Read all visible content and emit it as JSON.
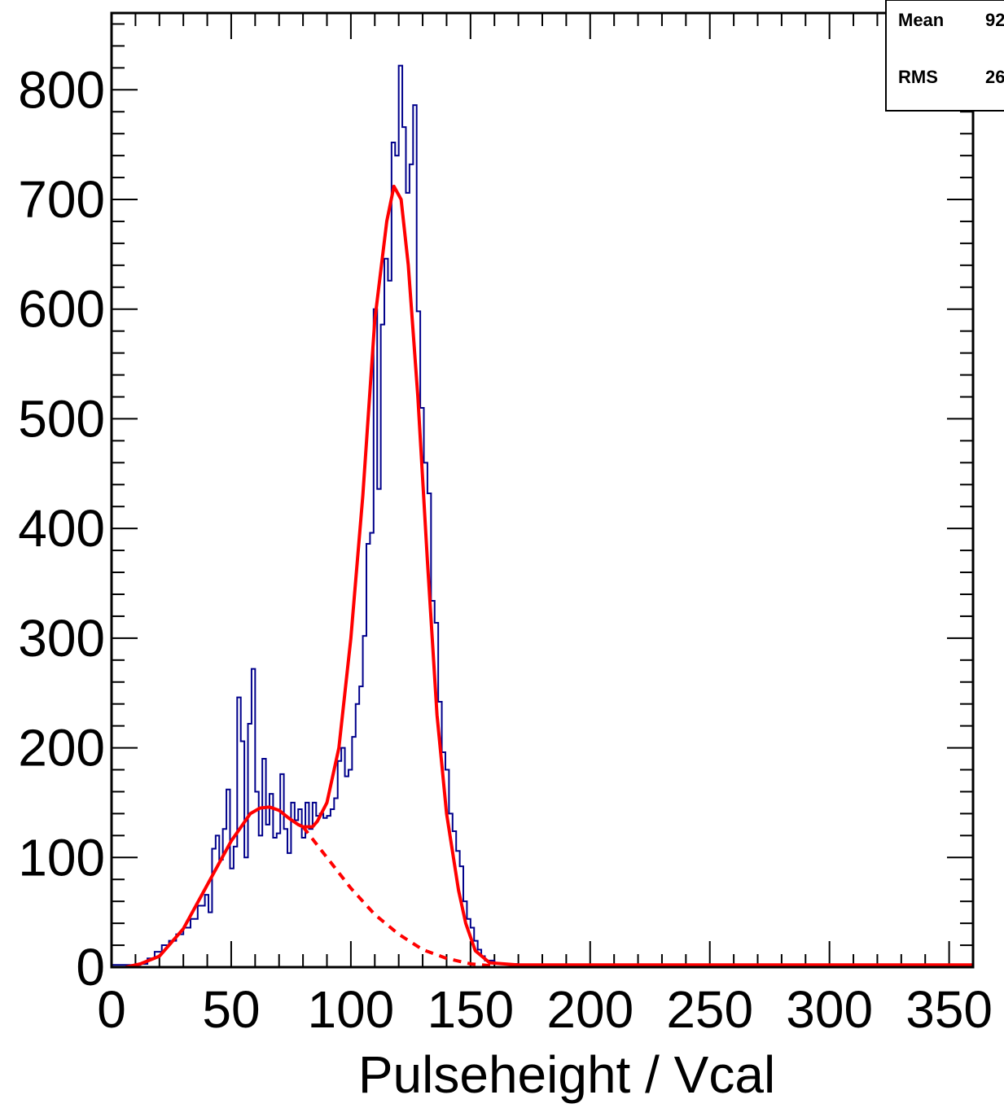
{
  "chart_data": {
    "type": "line",
    "title": "",
    "xlabel": "Pulseheight / Vcal",
    "ylabel": "",
    "xlim": [
      0,
      360
    ],
    "ylim": [
      0,
      870
    ],
    "x_ticks": [
      0,
      50,
      100,
      150,
      200,
      250,
      300,
      350
    ],
    "y_ticks": [
      0,
      100,
      200,
      300,
      400,
      500,
      600,
      700,
      800
    ],
    "x_tick_labels": [
      "0",
      "50",
      "100",
      "150",
      "200",
      "250",
      "300",
      "350"
    ],
    "y_tick_labels": [
      "0",
      "100",
      "200",
      "300",
      "400",
      "500",
      "600",
      "700",
      "800"
    ],
    "grid": false,
    "legend": "none",
    "stats_box": {
      "placement": "top-right",
      "rows": [
        {
          "label": "Mean",
          "value": "92"
        },
        {
          "label": "RMS",
          "value": "26"
        }
      ]
    },
    "series": [
      {
        "kind": "histogram",
        "color": "#00008b",
        "bin_width": 1.5,
        "bins": [
          [
            0,
            2
          ],
          [
            12,
            3
          ],
          [
            15,
            8
          ],
          [
            18,
            14
          ],
          [
            21,
            20
          ],
          [
            24,
            24
          ],
          [
            27,
            30
          ],
          [
            30,
            36
          ],
          [
            33,
            44
          ],
          [
            36,
            56
          ],
          [
            39,
            66
          ],
          [
            40.5,
            50
          ],
          [
            42,
            108
          ],
          [
            43.5,
            120
          ],
          [
            45,
            98
          ],
          [
            46.5,
            126
          ],
          [
            48,
            162
          ],
          [
            49.5,
            90
          ],
          [
            51,
            110
          ],
          [
            52.5,
            246
          ],
          [
            54,
            206
          ],
          [
            55.5,
            100
          ],
          [
            57,
            222
          ],
          [
            58.5,
            272
          ],
          [
            60,
            160
          ],
          [
            61.5,
            120
          ],
          [
            63,
            190
          ],
          [
            64.5,
            130
          ],
          [
            66,
            158
          ],
          [
            67.5,
            118
          ],
          [
            69,
            122
          ],
          [
            70.5,
            176
          ],
          [
            72,
            126
          ],
          [
            73.5,
            104
          ],
          [
            75,
            150
          ],
          [
            76.5,
            134
          ],
          [
            78,
            144
          ],
          [
            79.5,
            118
          ],
          [
            81,
            150
          ],
          [
            82.5,
            126
          ],
          [
            84,
            150
          ],
          [
            85.5,
            138
          ],
          [
            87,
            140
          ],
          [
            88.5,
            136
          ],
          [
            90,
            138
          ],
          [
            91.5,
            144
          ],
          [
            93,
            154
          ],
          [
            94.5,
            188
          ],
          [
            96,
            200
          ],
          [
            97.5,
            174
          ],
          [
            99,
            180
          ],
          [
            100.5,
            210
          ],
          [
            102,
            240
          ],
          [
            103.5,
            256
          ],
          [
            105,
            302
          ],
          [
            106.5,
            386
          ],
          [
            108,
            396
          ],
          [
            109.5,
            600
          ],
          [
            111,
            436
          ],
          [
            112.5,
            586
          ],
          [
            114,
            646
          ],
          [
            115.5,
            626
          ],
          [
            117,
            752
          ],
          [
            118.5,
            740
          ],
          [
            120,
            822
          ],
          [
            121.5,
            766
          ],
          [
            123,
            706
          ],
          [
            124.5,
            732
          ],
          [
            126,
            786
          ],
          [
            127.5,
            598
          ],
          [
            129,
            510
          ],
          [
            130.5,
            460
          ],
          [
            132,
            432
          ],
          [
            133.5,
            334
          ],
          [
            135,
            314
          ],
          [
            136.5,
            242
          ],
          [
            138,
            196
          ],
          [
            139.5,
            180
          ],
          [
            141,
            140
          ],
          [
            142.5,
            124
          ],
          [
            144,
            106
          ],
          [
            145.5,
            92
          ],
          [
            147,
            60
          ],
          [
            148.5,
            44
          ],
          [
            150,
            36
          ],
          [
            151.5,
            24
          ],
          [
            153,
            16
          ],
          [
            154.5,
            10
          ],
          [
            156,
            6
          ],
          [
            160,
            3
          ],
          [
            170,
            2
          ],
          [
            190,
            2
          ],
          [
            220,
            2
          ],
          [
            360,
            2
          ]
        ]
      },
      {
        "kind": "fit",
        "color": "#ff0000",
        "style": "solid",
        "points": [
          [
            6,
            0
          ],
          [
            12,
            3
          ],
          [
            20,
            10
          ],
          [
            30,
            35
          ],
          [
            40,
            75
          ],
          [
            50,
            115
          ],
          [
            58,
            140
          ],
          [
            62,
            145
          ],
          [
            66,
            146
          ],
          [
            70,
            143
          ],
          [
            74,
            136
          ],
          [
            78,
            130
          ],
          [
            80,
            128
          ],
          [
            84,
            128
          ],
          [
            86,
            133
          ],
          [
            90,
            150
          ],
          [
            95,
            200
          ],
          [
            100,
            300
          ],
          [
            105,
            430
          ],
          [
            110,
            590
          ],
          [
            115,
            680
          ],
          [
            118,
            712
          ],
          [
            121,
            700
          ],
          [
            124,
            640
          ],
          [
            128,
            520
          ],
          [
            132,
            370
          ],
          [
            136,
            230
          ],
          [
            140,
            140
          ],
          [
            145,
            70
          ],
          [
            148,
            40
          ],
          [
            152,
            15
          ],
          [
            158,
            4
          ],
          [
            170,
            2
          ],
          [
            200,
            2
          ],
          [
            360,
            2
          ]
        ]
      },
      {
        "kind": "fit",
        "color": "#ff0000",
        "style": "dashed",
        "points": [
          [
            80,
            128
          ],
          [
            90,
            100
          ],
          [
            100,
            72
          ],
          [
            110,
            48
          ],
          [
            120,
            30
          ],
          [
            130,
            16
          ],
          [
            140,
            8
          ],
          [
            150,
            3
          ],
          [
            160,
            1
          ]
        ]
      }
    ]
  }
}
